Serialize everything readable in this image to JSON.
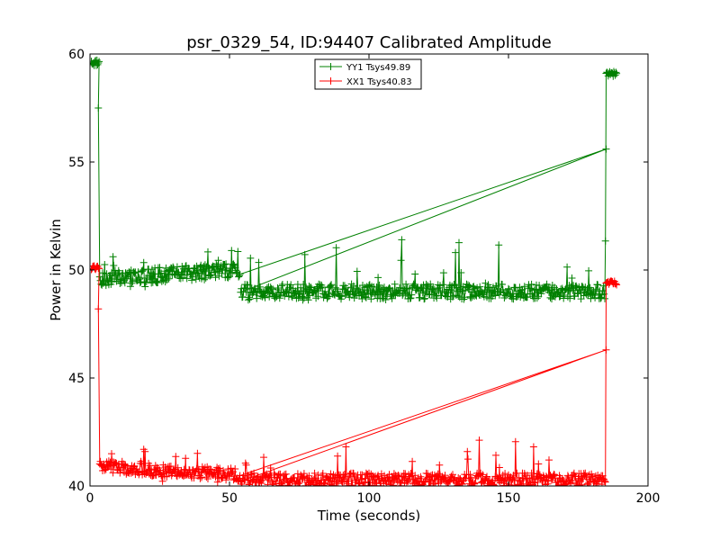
{
  "chart_data": {
    "type": "line",
    "title": "psr_0329_54, ID:94407 Calibrated Amplitude",
    "xlabel": "Time (seconds)",
    "ylabel": "Power in Kelvin",
    "xlim": [
      0,
      200
    ],
    "ylim": [
      40,
      60
    ],
    "xticks": [
      0,
      50,
      100,
      150,
      200
    ],
    "yticks": [
      40,
      45,
      50,
      55,
      60
    ],
    "grid": false,
    "legend_position": "top-center",
    "series": [
      {
        "name": "YY1 Tsys49.89",
        "color": "#008000",
        "marker": "+",
        "segments": [
          {
            "x_start": 0.5,
            "x_end": 3.5,
            "base": 59.6,
            "noise": 0.15,
            "spikes": 0.05
          },
          {
            "x_start": 3.5,
            "x_end": 54.0,
            "base_start": 49.6,
            "base_end": 50.0,
            "noise": 0.35,
            "spikes": 1.5
          },
          {
            "x_start": 54.0,
            "x_end": 185.0,
            "base": 49.0,
            "noise": 0.35,
            "spikes": 2.5
          },
          {
            "x_start": 185.0,
            "x_end": 189.0,
            "base": 59.1,
            "noise": 0.15,
            "spikes": 0.3
          }
        ],
        "transitions": [
          {
            "x": 3.0,
            "y": 57.5
          },
          {
            "x": 185.0,
            "y": 55.6
          }
        ]
      },
      {
        "name": "XX1 Tsys40.83",
        "color": "#ff0000",
        "marker": "+",
        "segments": [
          {
            "x_start": 0.5,
            "x_end": 3.5,
            "base": 50.1,
            "noise": 0.1,
            "spikes": 0.1
          },
          {
            "x_start": 3.5,
            "x_end": 54.0,
            "base_start": 40.9,
            "base_end": 40.5,
            "noise": 0.3,
            "spikes": 1.4
          },
          {
            "x_start": 54.0,
            "x_end": 185.0,
            "base": 40.3,
            "noise": 0.3,
            "spikes": 2.0
          },
          {
            "x_start": 185.0,
            "x_end": 189.0,
            "base": 49.4,
            "noise": 0.1,
            "spikes": 0.2
          }
        ],
        "transitions": [
          {
            "x": 3.0,
            "y": 48.2
          },
          {
            "x": 185.0,
            "y": 46.3
          }
        ]
      }
    ]
  }
}
